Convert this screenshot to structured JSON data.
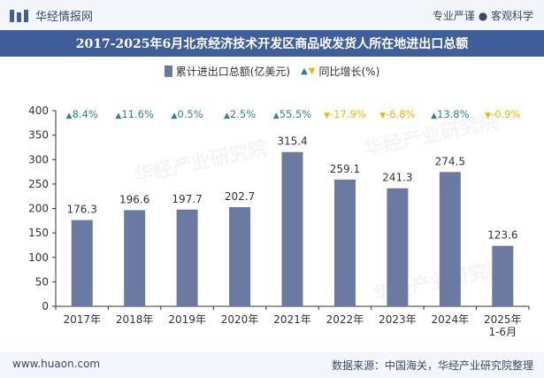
{
  "header": {
    "logo_text": "华经情报网",
    "tagline": "专业严谨 ● 客观科学"
  },
  "watermark_text": "华经产业研究院",
  "chart_data": {
    "type": "bar",
    "title": "2017-2025年6月北京经济技术开发区商品收发货人所在地进出口总额",
    "categories": [
      "2017年",
      "2018年",
      "2019年",
      "2020年",
      "2021年",
      "2022年",
      "2023年",
      "2024年",
      "2025年\n1-6月"
    ],
    "series": [
      {
        "name": "累计进出口总额(亿美元)",
        "values": [
          176.3,
          196.6,
          197.7,
          202.7,
          315.4,
          259.1,
          241.3,
          274.5,
          123.6
        ],
        "labels": [
          "176.3",
          "196.6",
          "197.7",
          "202.7",
          "315.4",
          "259.1",
          "241.3",
          "274.5",
          "123.6"
        ]
      },
      {
        "name": "同比增长(%)",
        "values": [
          8.4,
          11.6,
          0.5,
          2.5,
          55.5,
          -17.9,
          -6.8,
          13.8,
          -0.9
        ],
        "labels": [
          "8.4%",
          "11.6%",
          "0.5%",
          "2.5%",
          "55.5%",
          "-17.9%",
          "-6.8%",
          "13.8%",
          "-0.9%"
        ]
      }
    ],
    "ylim": [
      0,
      400
    ],
    "yticks": [
      "0",
      "50",
      "100",
      "150",
      "200",
      "250",
      "300",
      "350",
      "400"
    ],
    "grid": false,
    "legend": "top-center",
    "colors": {
      "bar": "#6b7aa0",
      "up": "#2e7fa0",
      "down": "#f0b800",
      "axis": "#333333"
    }
  },
  "footer": {
    "url": "www.huaon.com",
    "source": "数据来源：中国海关，华经产业研究院整理"
  }
}
